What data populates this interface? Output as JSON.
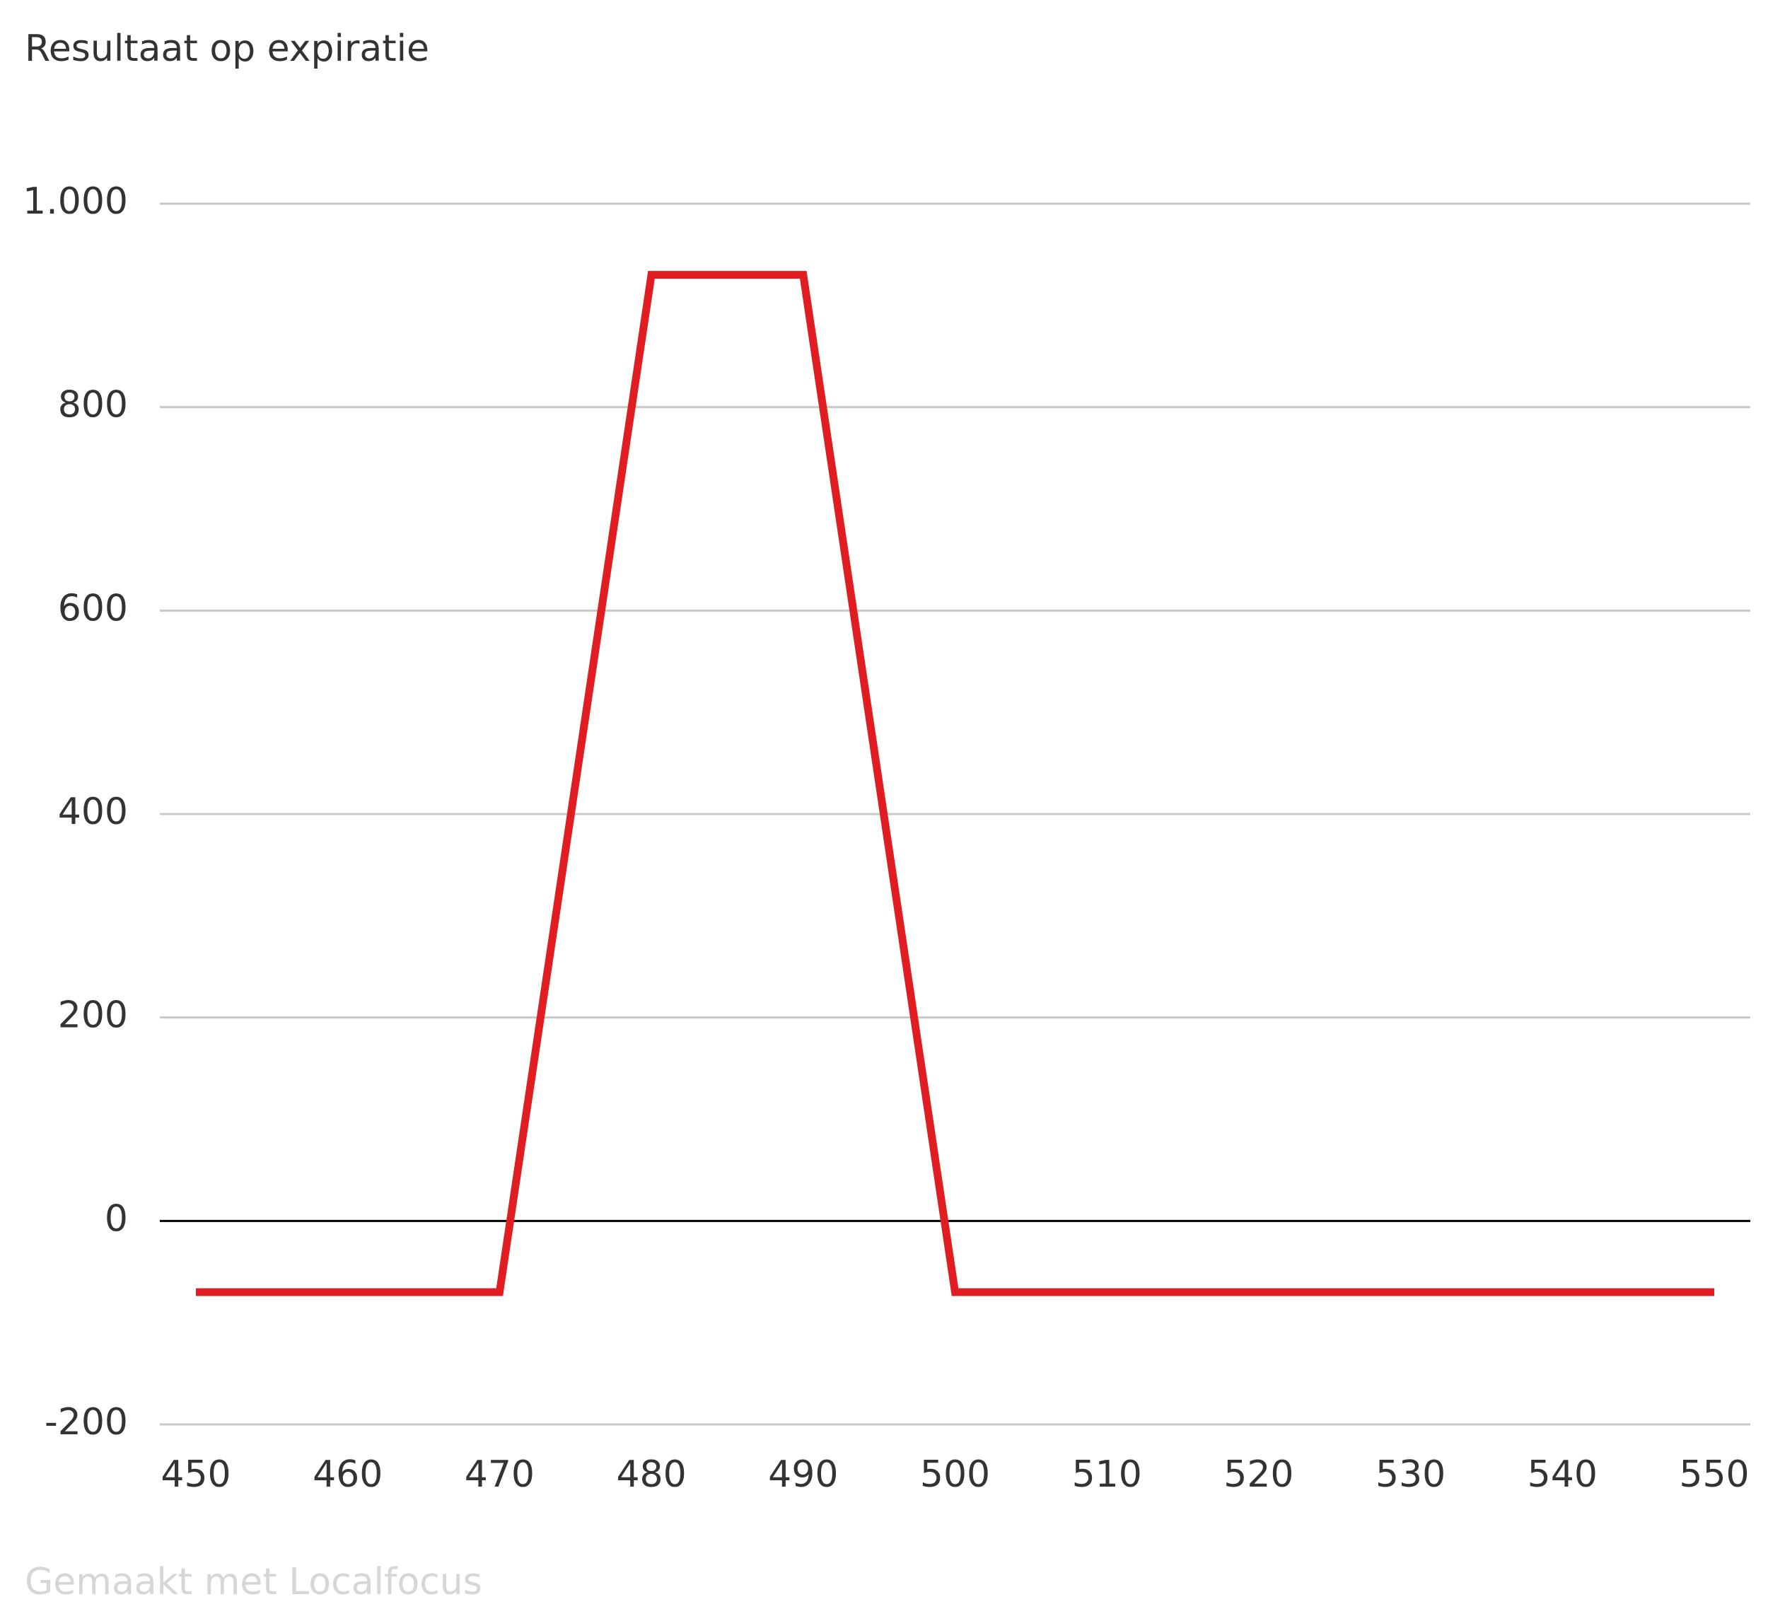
{
  "chart_data": {
    "type": "line",
    "title": "Resultaat op expiratie",
    "x": [
      450,
      470,
      480,
      490,
      500,
      550
    ],
    "values": [
      -70,
      -70,
      930,
      930,
      -70,
      -70
    ],
    "color": "#e01e22",
    "xlim": [
      450,
      550
    ],
    "xticks": [
      450,
      460,
      470,
      480,
      490,
      500,
      510,
      520,
      530,
      540,
      550
    ],
    "ylim": [
      -200,
      1000
    ],
    "yticks": [
      -200,
      0,
      200,
      400,
      600,
      800,
      {
        "value": 1000,
        "label": "1.000"
      }
    ],
    "grid": true,
    "footer": "Gemaakt met Localfocus"
  }
}
